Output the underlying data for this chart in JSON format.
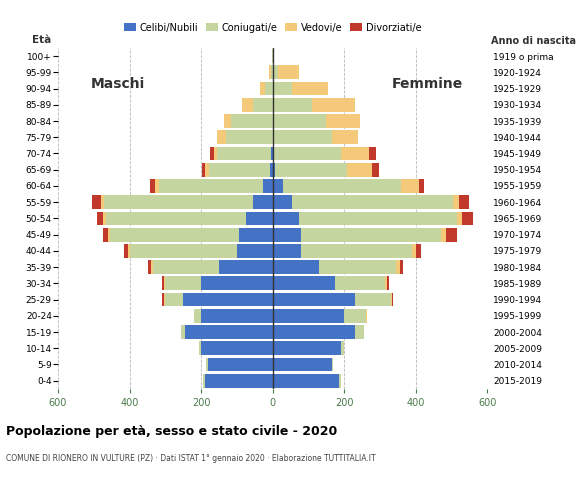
{
  "age_groups": [
    "0-4",
    "5-9",
    "10-14",
    "15-19",
    "20-24",
    "25-29",
    "30-34",
    "35-39",
    "40-44",
    "45-49",
    "50-54",
    "55-59",
    "60-64",
    "65-69",
    "70-74",
    "75-79",
    "80-84",
    "85-89",
    "90-94",
    "95-99",
    "100+"
  ],
  "birth_years": [
    "2015-2019",
    "2010-2014",
    "2005-2009",
    "2000-2004",
    "1995-1999",
    "1990-1994",
    "1985-1989",
    "1980-1984",
    "1975-1979",
    "1970-1974",
    "1965-1969",
    "1960-1964",
    "1955-1959",
    "1950-1954",
    "1945-1949",
    "1940-1944",
    "1935-1939",
    "1930-1934",
    "1925-1929",
    "1920-1924",
    "1919 o prima"
  ],
  "males": {
    "celibi": [
      190,
      180,
      200,
      245,
      200,
      250,
      200,
      150,
      100,
      95,
      75,
      55,
      28,
      8,
      5,
      0,
      0,
      0,
      0,
      0,
      0
    ],
    "coniugati": [
      5,
      5,
      5,
      10,
      20,
      50,
      100,
      185,
      300,
      360,
      390,
      415,
      290,
      170,
      150,
      130,
      115,
      55,
      20,
      5,
      2
    ],
    "vedovi": [
      0,
      0,
      0,
      0,
      0,
      5,
      5,
      5,
      5,
      5,
      10,
      10,
      10,
      10,
      10,
      25,
      20,
      30,
      15,
      5,
      1
    ],
    "divorziati": [
      0,
      0,
      0,
      0,
      0,
      3,
      5,
      8,
      10,
      15,
      15,
      25,
      15,
      10,
      10,
      0,
      0,
      0,
      0,
      0,
      0
    ]
  },
  "females": {
    "celibi": [
      185,
      165,
      190,
      230,
      200,
      230,
      175,
      130,
      80,
      80,
      75,
      55,
      28,
      8,
      5,
      0,
      0,
      0,
      0,
      0,
      0
    ],
    "coniugati": [
      5,
      5,
      10,
      25,
      60,
      100,
      140,
      215,
      310,
      390,
      440,
      450,
      330,
      200,
      185,
      165,
      150,
      110,
      55,
      15,
      2
    ],
    "vedovi": [
      0,
      0,
      0,
      0,
      5,
      5,
      5,
      10,
      10,
      15,
      15,
      15,
      50,
      70,
      80,
      75,
      95,
      120,
      100,
      60,
      2
    ],
    "divorziati": [
      0,
      0,
      0,
      0,
      0,
      3,
      5,
      10,
      15,
      30,
      30,
      30,
      15,
      20,
      20,
      0,
      0,
      0,
      0,
      0,
      0
    ]
  },
  "color_celibi": "#4472c4",
  "color_coniugati": "#c5d5a0",
  "color_vedovi": "#f5c97a",
  "color_divorziati": "#c0392b",
  "title": "Popolazione per età, sesso e stato civile - 2020",
  "subtitle": "COMUNE DI RIONERO IN VULTURE (PZ) · Dati ISTAT 1° gennaio 2020 · Elaborazione TUTTITALIA.IT",
  "xlim": 600,
  "background_color": "#ffffff",
  "grid_color": "#aaaaaa"
}
